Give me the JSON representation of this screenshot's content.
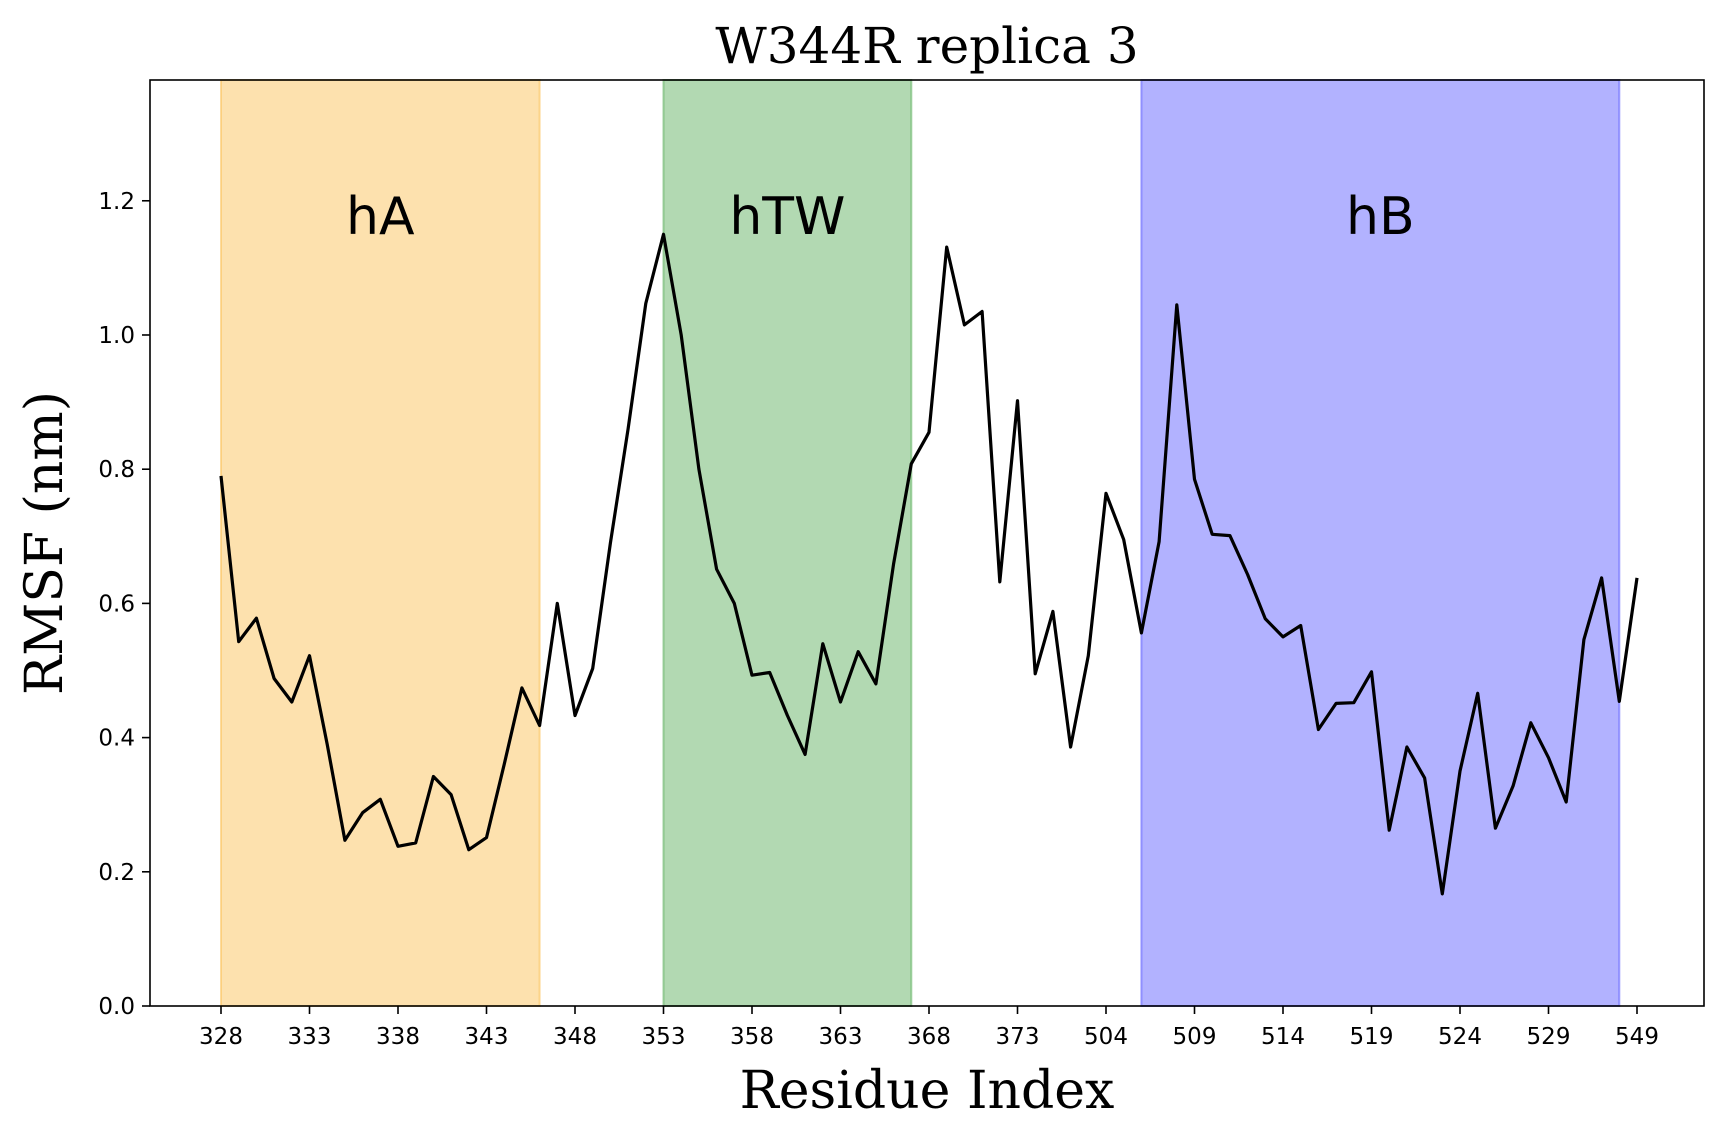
{
  "chart_data": {
    "type": "line",
    "title": "W344R replica 3",
    "xlabel": "Residue Index",
    "ylabel": "RMSF (nm)",
    "ylim": [
      0.0,
      1.38
    ],
    "yticks": [
      "0.0",
      "0.2",
      "0.4",
      "0.6",
      "0.8",
      "1.0",
      "1.2"
    ],
    "xtick_labels": [
      "328",
      "333",
      "338",
      "343",
      "348",
      "353",
      "358",
      "363",
      "368",
      "373",
      "504",
      "509",
      "514",
      "519",
      "524",
      "529",
      "549"
    ],
    "xtick_positions": [
      0,
      5,
      10,
      15,
      20,
      25,
      30,
      35,
      40,
      45,
      50,
      55,
      60,
      65,
      70,
      75,
      80
    ],
    "grid": false,
    "line_color": "#000000",
    "regions": [
      {
        "label": "hA",
        "start": 0,
        "end": 18,
        "color": "#FBC35E"
      },
      {
        "label": "hTW",
        "start": 25,
        "end": 39,
        "color": "#66B466"
      },
      {
        "label": "hB",
        "start": 52,
        "end": 79,
        "color": "#6666FF"
      }
    ],
    "x": [
      0,
      1,
      2,
      3,
      4,
      5,
      6,
      7,
      8,
      9,
      10,
      11,
      12,
      13,
      14,
      15,
      16,
      17,
      18,
      19,
      20,
      21,
      22,
      23,
      24,
      25,
      26,
      27,
      28,
      29,
      30,
      31,
      32,
      33,
      34,
      35,
      36,
      37,
      38,
      39,
      40,
      41,
      42,
      43,
      44,
      45,
      46,
      47,
      48,
      49,
      50,
      51,
      52,
      53,
      54,
      55,
      56,
      57,
      58,
      59,
      60,
      61,
      62,
      63,
      64,
      65,
      66,
      67,
      68,
      69,
      70,
      71,
      72,
      73,
      74,
      75,
      76,
      77,
      78,
      79,
      80
    ],
    "series": [
      {
        "values": [
          0.79,
          0.543,
          0.578,
          0.488,
          0.453,
          0.522,
          0.39,
          0.247,
          0.288,
          0.308,
          0.238,
          0.243,
          0.342,
          0.315,
          0.233,
          0.251,
          0.36,
          0.474,
          0.418,
          0.6,
          0.433,
          0.503,
          0.69,
          0.86,
          1.047,
          1.15,
          1.0,
          0.8,
          0.651,
          0.6,
          0.493,
          0.497,
          0.433,
          0.375,
          0.54,
          0.453,
          0.528,
          0.48,
          0.659,
          0.808,
          0.855,
          1.131,
          1.015,
          1.035,
          0.632,
          0.902,
          0.495,
          0.588,
          0.386,
          0.522,
          0.764,
          0.695,
          0.556,
          0.692,
          1.045,
          0.785,
          0.703,
          0.701,
          0.643,
          0.577,
          0.55,
          0.567,
          0.412,
          0.451,
          0.452,
          0.498,
          0.262,
          0.386,
          0.34,
          0.167,
          0.35,
          0.466,
          0.265,
          0.328,
          0.422,
          0.37,
          0.304,
          0.546,
          0.638,
          0.454,
          0.638
        ]
      }
    ]
  }
}
